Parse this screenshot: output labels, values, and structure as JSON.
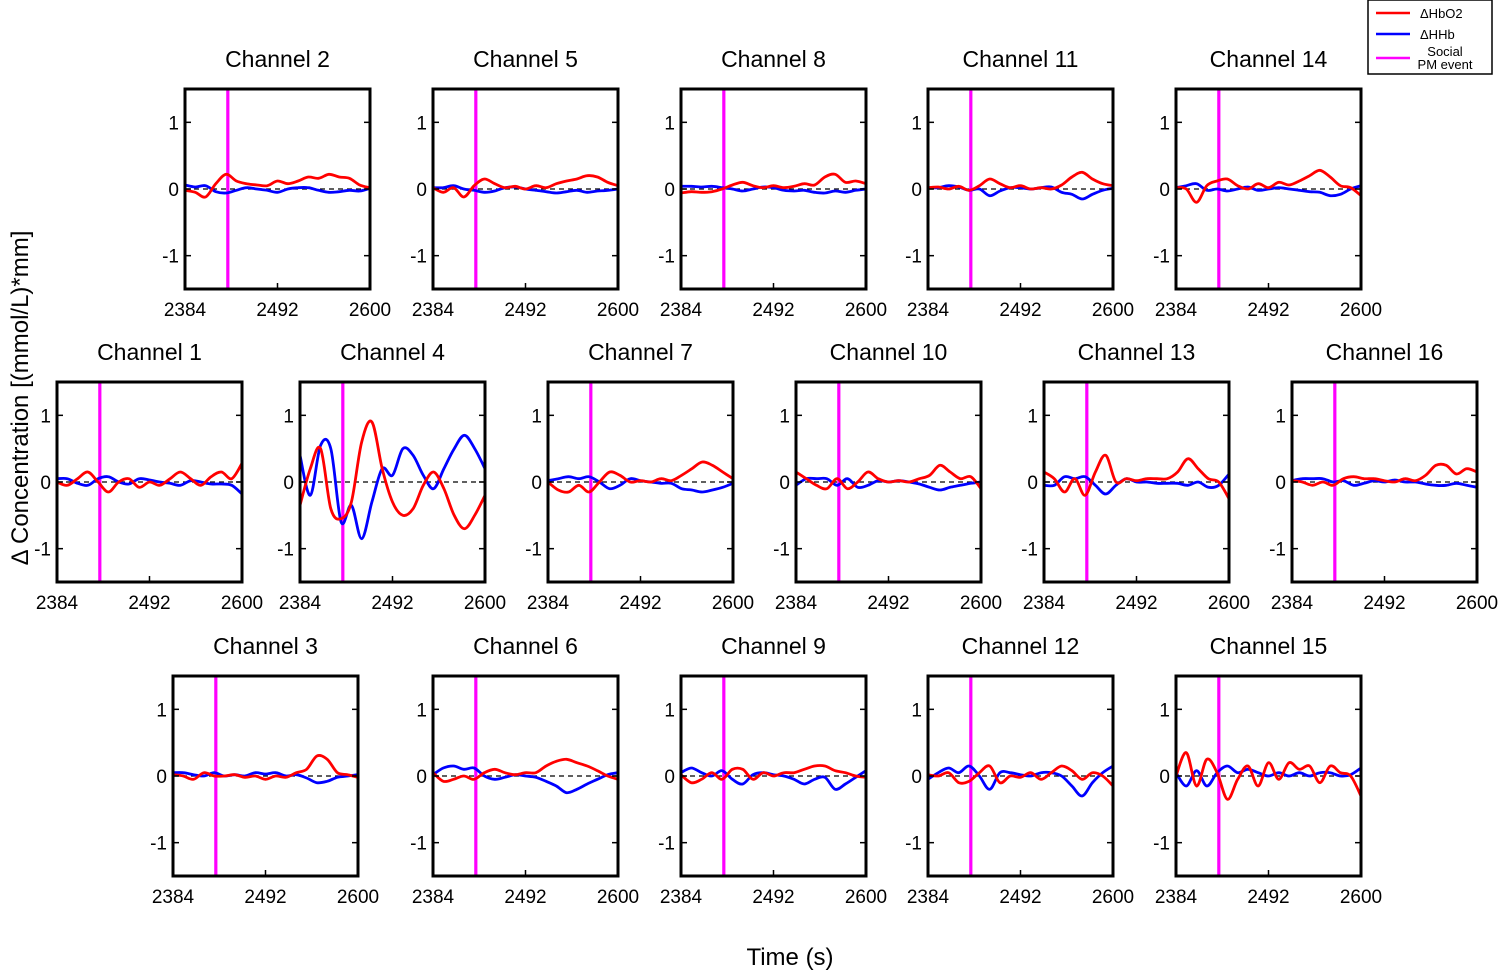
{
  "chart_data": {
    "type": "line",
    "layout": "small-multiples",
    "xlabel": "Time (s)",
    "ylabel": "Δ Concentration [(mmol/L)*mm]",
    "xlim": [
      2384,
      2600
    ],
    "ylim": [
      -1.5,
      1.5
    ],
    "xticks": [
      "2384",
      "2492",
      "2600"
    ],
    "yticks": [
      "1",
      "0",
      "-1"
    ],
    "event_time": 2434,
    "legend": {
      "position": "top-right",
      "entries": [
        {
          "name": "ΔHbO2",
          "color": "#ff0000"
        },
        {
          "name": "ΔHHb",
          "color": "#0000ff"
        },
        {
          "name_lines": [
            "Social",
            "PM event"
          ],
          "color": "#ff00ff"
        }
      ]
    },
    "x": [
      2384,
      2396,
      2408,
      2420,
      2432,
      2444,
      2456,
      2468,
      2480,
      2492,
      2504,
      2516,
      2528,
      2540,
      2552,
      2564,
      2576,
      2588,
      2600
    ],
    "panels": [
      {
        "row": 0,
        "col": 0,
        "title": "Channel 2",
        "hbo2": [
          -0.02,
          -0.05,
          -0.12,
          0.08,
          0.22,
          0.12,
          0.08,
          0.06,
          0.05,
          0.12,
          0.08,
          0.12,
          0.18,
          0.16,
          0.22,
          0.18,
          0.16,
          0.06,
          0.02
        ],
        "hhb": [
          0.06,
          0.03,
          0.05,
          -0.04,
          -0.06,
          -0.02,
          0.02,
          0.0,
          -0.02,
          -0.05,
          0.0,
          0.02,
          0.02,
          -0.02,
          -0.05,
          -0.04,
          -0.02,
          -0.03,
          0.01
        ]
      },
      {
        "row": 0,
        "col": 1,
        "title": "Channel 5",
        "hbo2": [
          0.02,
          -0.05,
          0.02,
          -0.12,
          0.05,
          0.15,
          0.08,
          0.02,
          0.04,
          0.0,
          0.05,
          0.02,
          0.08,
          0.12,
          0.15,
          0.2,
          0.18,
          0.1,
          0.05
        ],
        "hhb": [
          0.02,
          0.02,
          0.05,
          0.0,
          -0.02,
          -0.05,
          -0.03,
          0.02,
          0.03,
          0.0,
          -0.02,
          -0.04,
          -0.06,
          -0.04,
          -0.02,
          -0.05,
          -0.03,
          -0.02,
          0.0
        ]
      },
      {
        "row": 0,
        "col": 2,
        "title": "Channel 8",
        "hbo2": [
          -0.06,
          -0.04,
          -0.05,
          -0.04,
          0.0,
          0.06,
          0.1,
          0.05,
          0.02,
          0.05,
          0.02,
          0.04,
          0.08,
          0.06,
          0.18,
          0.22,
          0.1,
          0.12,
          0.08
        ],
        "hhb": [
          0.04,
          0.04,
          0.03,
          0.04,
          0.02,
          0.0,
          -0.03,
          0.0,
          0.03,
          0.02,
          -0.02,
          -0.03,
          -0.02,
          -0.05,
          -0.06,
          -0.03,
          -0.05,
          -0.02,
          0.0
        ]
      },
      {
        "row": 0,
        "col": 3,
        "title": "Channel 11",
        "hbo2": [
          0.02,
          0.03,
          0.0,
          0.04,
          -0.02,
          0.05,
          0.15,
          0.08,
          0.02,
          0.05,
          0.0,
          0.02,
          0.0,
          0.06,
          0.18,
          0.25,
          0.15,
          0.08,
          0.05
        ],
        "hhb": [
          0.02,
          0.02,
          0.05,
          0.03,
          -0.02,
          0.0,
          -0.1,
          -0.03,
          0.02,
          0.02,
          0.0,
          0.02,
          0.03,
          -0.05,
          -0.08,
          -0.15,
          -0.08,
          -0.02,
          0.01
        ]
      },
      {
        "row": 0,
        "col": 4,
        "title": "Channel 14",
        "hbo2": [
          0.02,
          0.0,
          -0.2,
          0.05,
          0.12,
          0.15,
          0.05,
          0.0,
          0.08,
          0.02,
          0.1,
          0.06,
          0.12,
          0.2,
          0.28,
          0.18,
          0.05,
          0.02,
          -0.1
        ],
        "hhb": [
          0.02,
          0.05,
          0.08,
          -0.02,
          0.0,
          -0.03,
          0.0,
          0.03,
          -0.02,
          0.0,
          0.02,
          0.0,
          -0.02,
          -0.04,
          -0.05,
          -0.1,
          -0.08,
          0.0,
          0.05
        ]
      },
      {
        "row": 1,
        "col": 0,
        "title": "Channel 1",
        "hbo2": [
          0.0,
          -0.05,
          0.05,
          0.15,
          0.0,
          -0.15,
          0.0,
          0.05,
          -0.08,
          0.0,
          -0.05,
          0.05,
          0.15,
          0.05,
          -0.05,
          0.08,
          0.15,
          0.05,
          0.28
        ],
        "hhb": [
          0.05,
          0.05,
          -0.02,
          -0.05,
          0.05,
          0.08,
          0.0,
          -0.03,
          0.05,
          0.03,
          0.0,
          -0.02,
          -0.05,
          0.02,
          0.0,
          -0.03,
          -0.03,
          -0.05,
          -0.18
        ]
      },
      {
        "row": 1,
        "col": 1,
        "title": "Channel 4",
        "hbo2": [
          -0.35,
          0.2,
          0.5,
          -0.4,
          -0.55,
          -0.3,
          0.6,
          0.9,
          0.2,
          -0.3,
          -0.5,
          -0.4,
          -0.05,
          0.15,
          -0.1,
          -0.5,
          -0.7,
          -0.5,
          -0.2
        ],
        "hhb": [
          0.4,
          -0.2,
          0.55,
          0.5,
          -0.6,
          -0.35,
          -0.85,
          -0.3,
          0.2,
          0.1,
          0.5,
          0.4,
          0.1,
          -0.1,
          0.2,
          0.5,
          0.7,
          0.5,
          0.2
        ]
      },
      {
        "row": 1,
        "col": 2,
        "title": "Channel 7",
        "hbo2": [
          0.0,
          -0.12,
          -0.15,
          -0.05,
          -0.15,
          0.0,
          0.15,
          0.1,
          0.0,
          0.02,
          0.0,
          0.05,
          0.02,
          0.1,
          0.2,
          0.3,
          0.25,
          0.15,
          0.05
        ],
        "hhb": [
          0.02,
          0.05,
          0.08,
          0.05,
          0.08,
          0.0,
          -0.1,
          -0.05,
          0.05,
          0.02,
          0.0,
          -0.02,
          -0.02,
          -0.1,
          -0.12,
          -0.15,
          -0.12,
          -0.08,
          -0.02
        ]
      },
      {
        "row": 1,
        "col": 3,
        "title": "Channel 10",
        "hbo2": [
          0.15,
          0.05,
          -0.05,
          -0.1,
          0.05,
          -0.1,
          0.0,
          0.15,
          0.05,
          0.0,
          0.02,
          0.0,
          0.05,
          0.1,
          0.25,
          0.15,
          0.05,
          0.08,
          -0.1
        ],
        "hhb": [
          -0.05,
          0.05,
          0.05,
          0.05,
          -0.05,
          0.05,
          -0.08,
          -0.05,
          0.02,
          0.0,
          0.02,
          0.0,
          -0.03,
          -0.08,
          -0.12,
          -0.08,
          -0.05,
          -0.02,
          0.0
        ]
      },
      {
        "row": 1,
        "col": 4,
        "title": "Channel 13",
        "hbo2": [
          0.15,
          0.05,
          -0.15,
          0.05,
          -0.2,
          0.15,
          0.4,
          0.0,
          0.05,
          0.02,
          0.05,
          0.05,
          0.05,
          0.15,
          0.35,
          0.2,
          0.05,
          0.0,
          -0.25
        ],
        "hhb": [
          -0.05,
          -0.05,
          0.08,
          0.05,
          0.08,
          -0.05,
          -0.18,
          -0.05,
          0.05,
          0.0,
          0.0,
          -0.02,
          -0.02,
          -0.02,
          -0.05,
          0.0,
          -0.08,
          -0.05,
          0.12
        ]
      },
      {
        "row": 1,
        "col": 5,
        "title": "Channel 16",
        "hbo2": [
          0.02,
          0.0,
          -0.05,
          0.0,
          -0.05,
          0.05,
          0.08,
          0.05,
          0.05,
          0.02,
          0.0,
          0.05,
          0.02,
          0.1,
          0.25,
          0.25,
          0.12,
          0.2,
          0.15
        ],
        "hhb": [
          0.02,
          0.05,
          0.05,
          0.05,
          0.0,
          0.02,
          -0.05,
          -0.02,
          0.02,
          0.0,
          0.03,
          0.0,
          0.0,
          -0.03,
          -0.05,
          -0.05,
          -0.02,
          -0.05,
          -0.08
        ]
      },
      {
        "row": 2,
        "col": 0,
        "title": "Channel 3",
        "hbo2": [
          0.02,
          0.0,
          -0.05,
          0.05,
          0.0,
          0.0,
          0.02,
          -0.02,
          0.0,
          -0.05,
          0.0,
          -0.02,
          0.05,
          0.1,
          0.3,
          0.25,
          0.05,
          0.02,
          -0.02
        ],
        "hhb": [
          0.05,
          0.05,
          0.02,
          0.0,
          0.05,
          0.0,
          0.02,
          0.0,
          0.05,
          0.03,
          0.05,
          0.0,
          0.02,
          -0.03,
          -0.1,
          -0.08,
          -0.02,
          0.0,
          0.02
        ]
      },
      {
        "row": 2,
        "col": 1,
        "title": "Channel 6",
        "hbo2": [
          0.05,
          -0.08,
          -0.05,
          0.0,
          -0.05,
          0.05,
          0.1,
          0.05,
          0.02,
          0.05,
          0.05,
          0.15,
          0.22,
          0.25,
          0.2,
          0.15,
          0.08,
          0.0,
          -0.05
        ],
        "hhb": [
          0.02,
          0.12,
          0.15,
          0.1,
          0.12,
          0.0,
          -0.05,
          -0.02,
          0.02,
          0.0,
          -0.02,
          -0.08,
          -0.15,
          -0.25,
          -0.2,
          -0.12,
          -0.05,
          0.02,
          0.05
        ]
      },
      {
        "row": 2,
        "col": 2,
        "title": "Channel 9",
        "hbo2": [
          0.02,
          -0.1,
          -0.05,
          0.05,
          -0.05,
          0.1,
          0.1,
          -0.05,
          0.05,
          0.0,
          0.05,
          0.05,
          0.1,
          0.15,
          0.15,
          0.08,
          0.05,
          0.0,
          -0.02
        ],
        "hhb": [
          0.05,
          0.12,
          0.05,
          0.0,
          0.08,
          -0.05,
          -0.12,
          0.02,
          0.05,
          0.02,
          0.0,
          -0.05,
          -0.12,
          -0.05,
          -0.02,
          -0.2,
          -0.12,
          -0.02,
          0.08
        ]
      },
      {
        "row": 2,
        "col": 3,
        "title": "Channel 12",
        "hbo2": [
          0.02,
          0.0,
          0.05,
          -0.1,
          -0.08,
          0.05,
          0.15,
          -0.1,
          0.0,
          -0.02,
          0.05,
          -0.05,
          0.05,
          0.15,
          0.08,
          -0.05,
          0.05,
          0.0,
          -0.15
        ],
        "hhb": [
          -0.05,
          0.05,
          0.12,
          0.05,
          0.15,
          0.0,
          -0.2,
          0.05,
          0.05,
          0.02,
          0.0,
          0.05,
          0.05,
          0.0,
          -0.15,
          -0.3,
          -0.1,
          0.05,
          0.15
        ]
      },
      {
        "row": 2,
        "col": 4,
        "title": "Channel 15",
        "hbo2": [
          0.0,
          0.35,
          -0.15,
          0.25,
          0.05,
          -0.35,
          -0.05,
          0.15,
          -0.15,
          0.2,
          -0.05,
          0.2,
          0.1,
          0.15,
          -0.1,
          0.15,
          0.05,
          0.0,
          -0.3
        ],
        "hhb": [
          0.05,
          -0.15,
          0.08,
          -0.15,
          0.05,
          0.15,
          0.05,
          0.1,
          0.05,
          0.0,
          0.05,
          0.0,
          0.05,
          0.0,
          0.05,
          0.05,
          0.0,
          0.02,
          0.12
        ]
      }
    ]
  }
}
